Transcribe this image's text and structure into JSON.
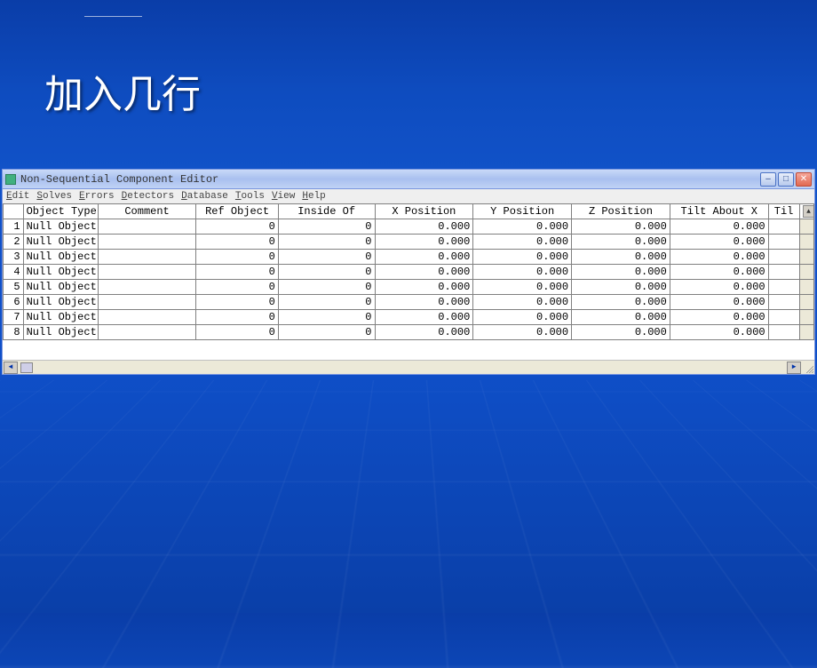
{
  "slide": {
    "title": "加入几行"
  },
  "window": {
    "title": "Non-Sequential Component Editor",
    "colors": {
      "titlebar_start": "#c9d9f8",
      "titlebar_end": "#a9c0ef",
      "chrome": "#ece9d8",
      "border": "#7a96df"
    },
    "menu": [
      {
        "label": "Edit",
        "hotkey": "E"
      },
      {
        "label": "Solves",
        "hotkey": "S"
      },
      {
        "label": "Errors",
        "hotkey": "E"
      },
      {
        "label": "Detectors",
        "hotkey": "D"
      },
      {
        "label": "Database",
        "hotkey": "D"
      },
      {
        "label": "Tools",
        "hotkey": "T"
      },
      {
        "label": "View",
        "hotkey": "V"
      },
      {
        "label": "Help",
        "hotkey": "H"
      }
    ],
    "columns": [
      "Object Type",
      "Comment",
      "Ref Object",
      "Inside Of",
      "X Position",
      "Y Position",
      "Z Position",
      "Tilt About X",
      "Til"
    ],
    "rows": [
      {
        "n": 1,
        "type": "Null Object",
        "comment": "",
        "ref": "0",
        "inside": "0",
        "x": "0.000",
        "y": "0.000",
        "z": "0.000",
        "tiltx": "0.000"
      },
      {
        "n": 2,
        "type": "Null Object",
        "comment": "",
        "ref": "0",
        "inside": "0",
        "x": "0.000",
        "y": "0.000",
        "z": "0.000",
        "tiltx": "0.000"
      },
      {
        "n": 3,
        "type": "Null Object",
        "comment": "",
        "ref": "0",
        "inside": "0",
        "x": "0.000",
        "y": "0.000",
        "z": "0.000",
        "tiltx": "0.000"
      },
      {
        "n": 4,
        "type": "Null Object",
        "comment": "",
        "ref": "0",
        "inside": "0",
        "x": "0.000",
        "y": "0.000",
        "z": "0.000",
        "tiltx": "0.000"
      },
      {
        "n": 5,
        "type": "Null Object",
        "comment": "",
        "ref": "0",
        "inside": "0",
        "x": "0.000",
        "y": "0.000",
        "z": "0.000",
        "tiltx": "0.000"
      },
      {
        "n": 6,
        "type": "Null Object",
        "comment": "",
        "ref": "0",
        "inside": "0",
        "x": "0.000",
        "y": "0.000",
        "z": "0.000",
        "tiltx": "0.000"
      },
      {
        "n": 7,
        "type": "Null Object",
        "comment": "",
        "ref": "0",
        "inside": "0",
        "x": "0.000",
        "y": "0.000",
        "z": "0.000",
        "tiltx": "0.000"
      },
      {
        "n": 8,
        "type": "Null Object",
        "comment": "",
        "ref": "0",
        "inside": "0",
        "x": "0.000",
        "y": "0.000",
        "z": "0.000",
        "tiltx": "0.000"
      }
    ]
  }
}
